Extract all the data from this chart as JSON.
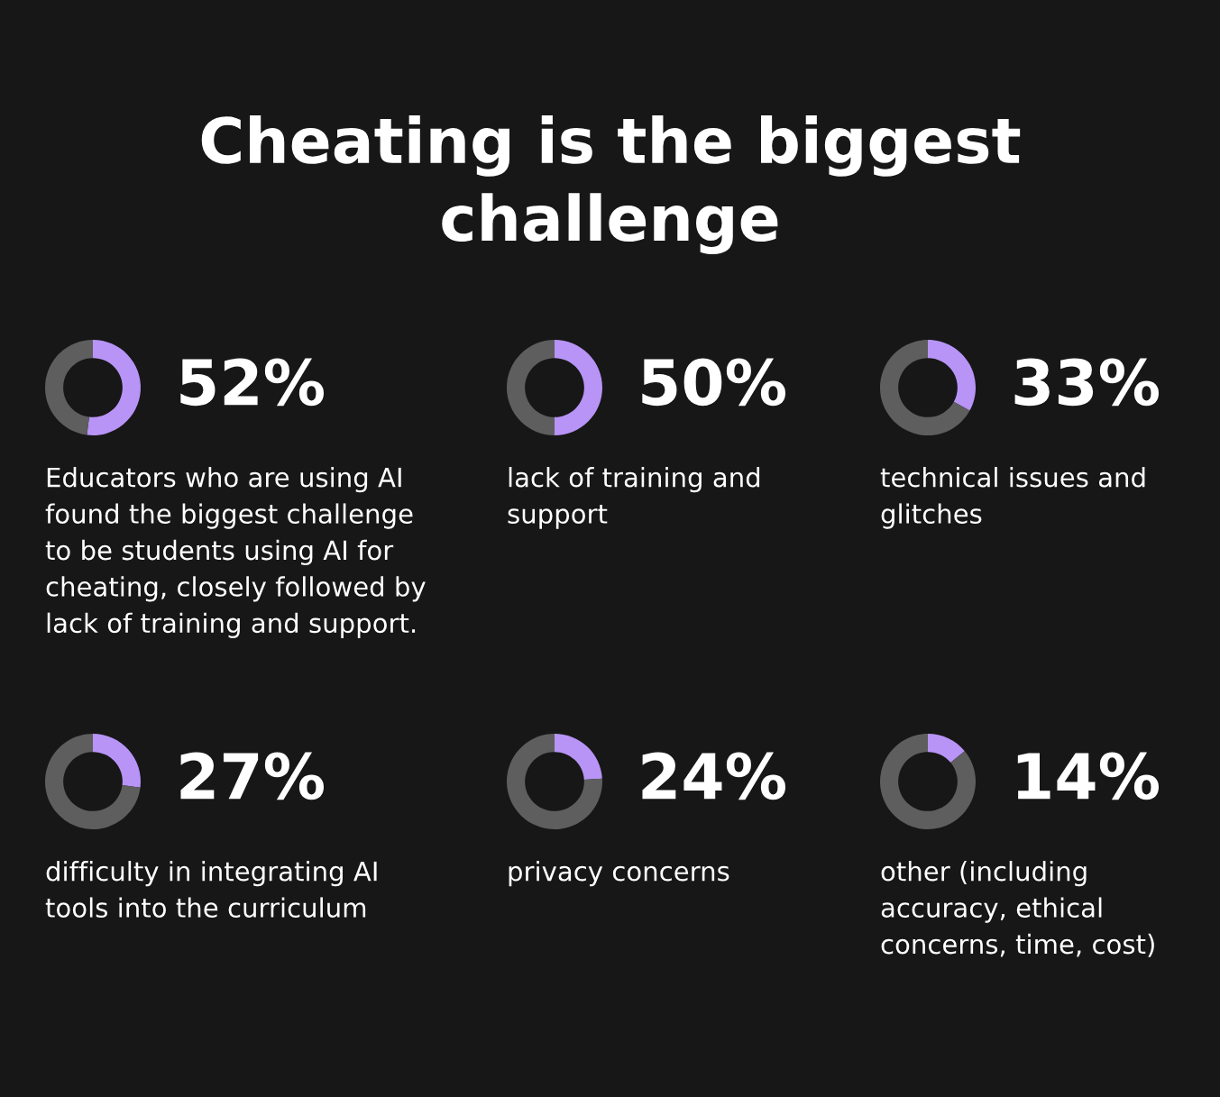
{
  "chart_data": [
    {
      "type": "donut",
      "title": "Cheating is the biggest\nchallenge",
      "categories": [
        null,
        null
      ],
      "values": [
        52,
        48
      ],
      "colors": [
        "#b794f6",
        "#5e5e5e"
      ],
      "value_labels": [
        "52%",
        null
      ],
      "annotations": [
        "Educators who are using AI\nfound the biggest challenge\nto be students using AI for\ncheating, closely followed by\nlack of training and support."
      ]
    },
    {
      "type": "donut",
      "categories": [
        null,
        null
      ],
      "values": [
        50,
        50
      ],
      "colors": [
        "#b794f6",
        "#5e5e5e"
      ],
      "value_labels": [
        "50%",
        null
      ],
      "annotations": [
        "lack of training and\nsupport"
      ]
    },
    {
      "type": "donut",
      "categories": [
        null,
        null
      ],
      "values": [
        33,
        67
      ],
      "colors": [
        "#b794f6",
        "#5e5e5e"
      ],
      "value_labels": [
        "33%",
        null
      ],
      "annotations": [
        "technical issues and\nglitches"
      ]
    },
    {
      "type": "donut",
      "categories": [
        null,
        null
      ],
      "values": [
        27,
        73
      ],
      "colors": [
        "#b794f6",
        "#5e5e5e"
      ],
      "value_labels": [
        "27%",
        null
      ],
      "annotations": [
        "difficulty in integrating AI\ntools into the curriculum"
      ]
    },
    {
      "type": "donut",
      "categories": [
        null,
        null
      ],
      "values": [
        24,
        76
      ],
      "colors": [
        "#b794f6",
        "#5e5e5e"
      ],
      "value_labels": [
        "24%",
        null
      ],
      "annotations": [
        "privacy concerns"
      ]
    },
    {
      "type": "donut",
      "categories": [
        null,
        null
      ],
      "values": [
        14,
        86
      ],
      "colors": [
        "#b794f6",
        "#5e5e5e"
      ],
      "value_labels": [
        "14%",
        null
      ],
      "annotations": [
        "other (including\naccuracy, ethical\nconcerns, time, cost)"
      ]
    }
  ]
}
